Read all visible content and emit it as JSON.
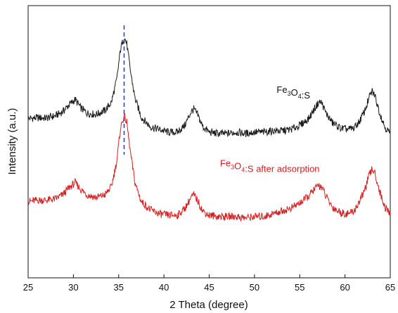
{
  "chart_data": {
    "type": "line",
    "title": "",
    "xlabel": "2 Theta (degree)",
    "ylabel": "Intensity  (a.u.)",
    "xlim": [
      25,
      65
    ],
    "ylim": [
      0,
      10
    ],
    "xticks": [
      25,
      30,
      35,
      40,
      45,
      50,
      55,
      60,
      65
    ],
    "y_tick_labels": false,
    "grid": false,
    "legend": "none",
    "reference_line": {
      "x": 35.6,
      "style": "dashed",
      "color": "#2b3fa8"
    },
    "annotations": [
      {
        "text_main": "Fe",
        "sub1": "3",
        "mid": "O",
        "sub2": "4",
        "tail": ":S",
        "x": 54.3,
        "y": 6.8,
        "color": "#111111"
      },
      {
        "text_main": "Fe",
        "sub1": "3",
        "mid": "O",
        "sub2": "4",
        "tail": ":S after adsorption",
        "x": 51.7,
        "y": 4.1,
        "color": "#d42020"
      }
    ],
    "series": [
      {
        "color": "#1a1a1a",
        "x": [
          25.0,
          26.0,
          27.0,
          28.0,
          28.8,
          29.5,
          30.2,
          30.8,
          31.5,
          32.5,
          33.5,
          34.2,
          34.8,
          35.2,
          35.6,
          35.9,
          36.3,
          36.8,
          37.5,
          38.5,
          39.5,
          40.5,
          41.5,
          42.3,
          43.0,
          43.3,
          43.7,
          44.3,
          45.0,
          46.0,
          47.0,
          48.0,
          49.0,
          50.0,
          51.0,
          52.0,
          53.0,
          54.0,
          55.0,
          56.0,
          56.6,
          57.1,
          57.4,
          57.9,
          58.6,
          59.5,
          60.3,
          61.0,
          61.6,
          62.2,
          62.7,
          63.0,
          63.3,
          63.8,
          64.4,
          65.0
        ],
        "y": [
          5.85,
          5.88,
          5.87,
          5.95,
          6.1,
          6.35,
          6.55,
          6.25,
          6.05,
          6.0,
          6.15,
          6.45,
          7.3,
          8.4,
          8.85,
          8.6,
          7.6,
          6.6,
          5.9,
          5.55,
          5.45,
          5.35,
          5.35,
          5.6,
          6.1,
          6.2,
          6.0,
          5.55,
          5.35,
          5.3,
          5.3,
          5.35,
          5.3,
          5.35,
          5.35,
          5.4,
          5.4,
          5.45,
          5.6,
          5.85,
          6.2,
          6.45,
          6.45,
          6.05,
          5.7,
          5.5,
          5.45,
          5.5,
          5.75,
          6.15,
          6.65,
          6.85,
          6.7,
          6.1,
          5.55,
          5.3
        ]
      },
      {
        "color": "#d42020",
        "x": [
          25.0,
          26.0,
          27.0,
          28.0,
          28.8,
          29.5,
          30.2,
          30.8,
          31.5,
          32.5,
          33.5,
          34.2,
          34.8,
          35.2,
          35.6,
          35.9,
          36.3,
          36.8,
          37.5,
          38.5,
          39.5,
          40.5,
          41.5,
          42.3,
          43.0,
          43.3,
          43.7,
          44.3,
          45.0,
          46.0,
          47.0,
          48.0,
          49.0,
          50.0,
          51.0,
          52.0,
          53.0,
          54.0,
          55.0,
          56.0,
          56.6,
          57.1,
          57.4,
          57.9,
          58.6,
          59.5,
          60.3,
          61.0,
          61.6,
          62.2,
          62.7,
          63.0,
          63.3,
          63.8,
          64.4,
          65.0
        ],
        "y": [
          2.8,
          2.85,
          2.85,
          2.9,
          3.05,
          3.3,
          3.5,
          3.25,
          3.05,
          2.95,
          3.05,
          3.35,
          4.3,
          5.5,
          5.95,
          5.7,
          4.6,
          3.5,
          2.8,
          2.5,
          2.35,
          2.3,
          2.3,
          2.55,
          2.95,
          3.05,
          2.85,
          2.45,
          2.3,
          2.25,
          2.25,
          2.25,
          2.2,
          2.25,
          2.25,
          2.35,
          2.45,
          2.55,
          2.75,
          3.0,
          3.25,
          3.4,
          3.35,
          3.0,
          2.6,
          2.4,
          2.35,
          2.45,
          2.8,
          3.25,
          3.8,
          4.0,
          3.85,
          3.2,
          2.6,
          2.35
        ]
      }
    ]
  }
}
